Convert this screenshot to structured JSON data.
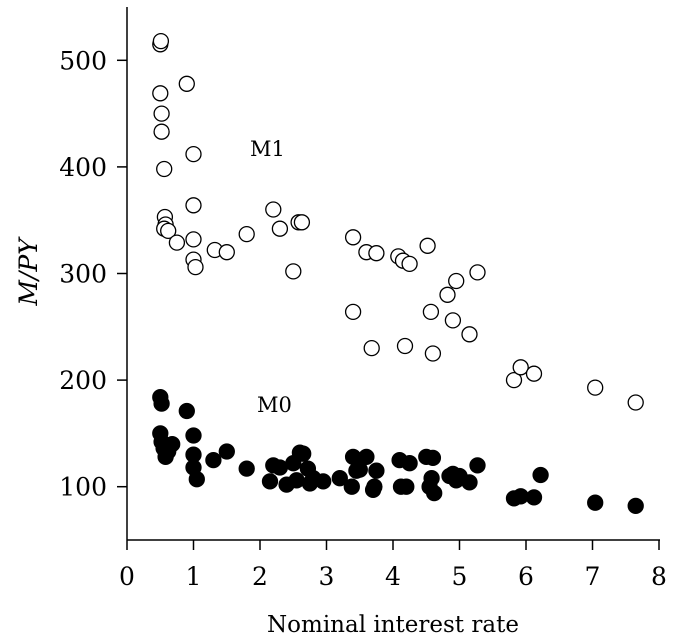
{
  "chart_data": {
    "type": "scatter",
    "title": "",
    "xlabel": "Nominal interest rate",
    "ylabel": "M/PY",
    "xlim": [
      0,
      8
    ],
    "ylim": [
      50,
      550
    ],
    "xticks": [
      "0",
      "1",
      "2",
      "3",
      "4",
      "5",
      "6",
      "7",
      "8"
    ],
    "yticks": [
      "100",
      "200",
      "300",
      "400",
      "500"
    ],
    "grid": false,
    "series": [
      {
        "name": "M1",
        "marker": "open-circle",
        "color": "#000000",
        "points": [
          [
            0.5,
            515
          ],
          [
            0.51,
            518
          ],
          [
            0.5,
            469
          ],
          [
            0.52,
            450
          ],
          [
            0.52,
            433
          ],
          [
            0.56,
            398
          ],
          [
            0.9,
            478
          ],
          [
            1.0,
            412
          ],
          [
            1.0,
            364
          ],
          [
            0.57,
            353
          ],
          [
            0.58,
            346
          ],
          [
            0.56,
            342
          ],
          [
            0.62,
            340
          ],
          [
            0.75,
            329
          ],
          [
            1.0,
            332
          ],
          [
            1.0,
            313
          ],
          [
            1.03,
            306
          ],
          [
            1.32,
            322
          ],
          [
            1.5,
            320
          ],
          [
            1.8,
            337
          ],
          [
            2.2,
            360
          ],
          [
            2.3,
            342
          ],
          [
            2.5,
            302
          ],
          [
            2.58,
            348
          ],
          [
            2.63,
            348
          ],
          [
            3.4,
            334
          ],
          [
            3.6,
            320
          ],
          [
            3.75,
            319
          ],
          [
            4.08,
            316
          ],
          [
            4.15,
            312
          ],
          [
            4.25,
            309
          ],
          [
            4.52,
            326
          ],
          [
            4.82,
            280
          ],
          [
            4.95,
            293
          ],
          [
            5.27,
            301
          ],
          [
            3.4,
            264
          ],
          [
            3.68,
            230
          ],
          [
            4.18,
            232
          ],
          [
            4.57,
            264
          ],
          [
            4.6,
            225
          ],
          [
            4.9,
            256
          ],
          [
            5.15,
            243
          ],
          [
            5.82,
            200
          ],
          [
            5.92,
            212
          ],
          [
            6.12,
            206
          ],
          [
            7.04,
            193
          ],
          [
            7.65,
            179
          ]
        ]
      },
      {
        "name": "M0",
        "marker": "filled-circle",
        "color": "#000000",
        "points": [
          [
            0.5,
            184
          ],
          [
            0.52,
            178
          ],
          [
            0.5,
            150
          ],
          [
            0.52,
            142
          ],
          [
            0.55,
            136
          ],
          [
            0.58,
            128
          ],
          [
            0.62,
            133
          ],
          [
            0.68,
            140
          ],
          [
            0.9,
            171
          ],
          [
            1.0,
            148
          ],
          [
            1.0,
            130
          ],
          [
            1.0,
            118
          ],
          [
            1.05,
            107
          ],
          [
            1.3,
            125
          ],
          [
            1.5,
            133
          ],
          [
            1.8,
            117
          ],
          [
            2.15,
            105
          ],
          [
            2.2,
            120
          ],
          [
            2.3,
            118
          ],
          [
            2.4,
            102
          ],
          [
            2.5,
            122
          ],
          [
            2.55,
            106
          ],
          [
            2.6,
            132
          ],
          [
            2.65,
            131
          ],
          [
            2.72,
            117
          ],
          [
            2.75,
            103
          ],
          [
            2.8,
            108
          ],
          [
            2.95,
            105
          ],
          [
            3.2,
            108
          ],
          [
            3.38,
            100
          ],
          [
            3.4,
            128
          ],
          [
            3.45,
            115
          ],
          [
            3.5,
            116
          ],
          [
            3.6,
            128
          ],
          [
            3.7,
            97
          ],
          [
            3.72,
            100
          ],
          [
            3.75,
            115
          ],
          [
            4.1,
            125
          ],
          [
            4.12,
            100
          ],
          [
            4.2,
            100
          ],
          [
            4.25,
            122
          ],
          [
            4.5,
            128
          ],
          [
            4.55,
            100
          ],
          [
            4.58,
            108
          ],
          [
            4.6,
            127
          ],
          [
            4.62,
            94
          ],
          [
            4.85,
            110
          ],
          [
            4.9,
            112
          ],
          [
            4.95,
            106
          ],
          [
            5.0,
            110
          ],
          [
            5.15,
            104
          ],
          [
            5.27,
            120
          ],
          [
            5.82,
            89
          ],
          [
            5.92,
            91
          ],
          [
            6.12,
            90
          ],
          [
            6.22,
            111
          ],
          [
            7.04,
            85
          ],
          [
            7.65,
            82
          ]
        ]
      }
    ]
  }
}
